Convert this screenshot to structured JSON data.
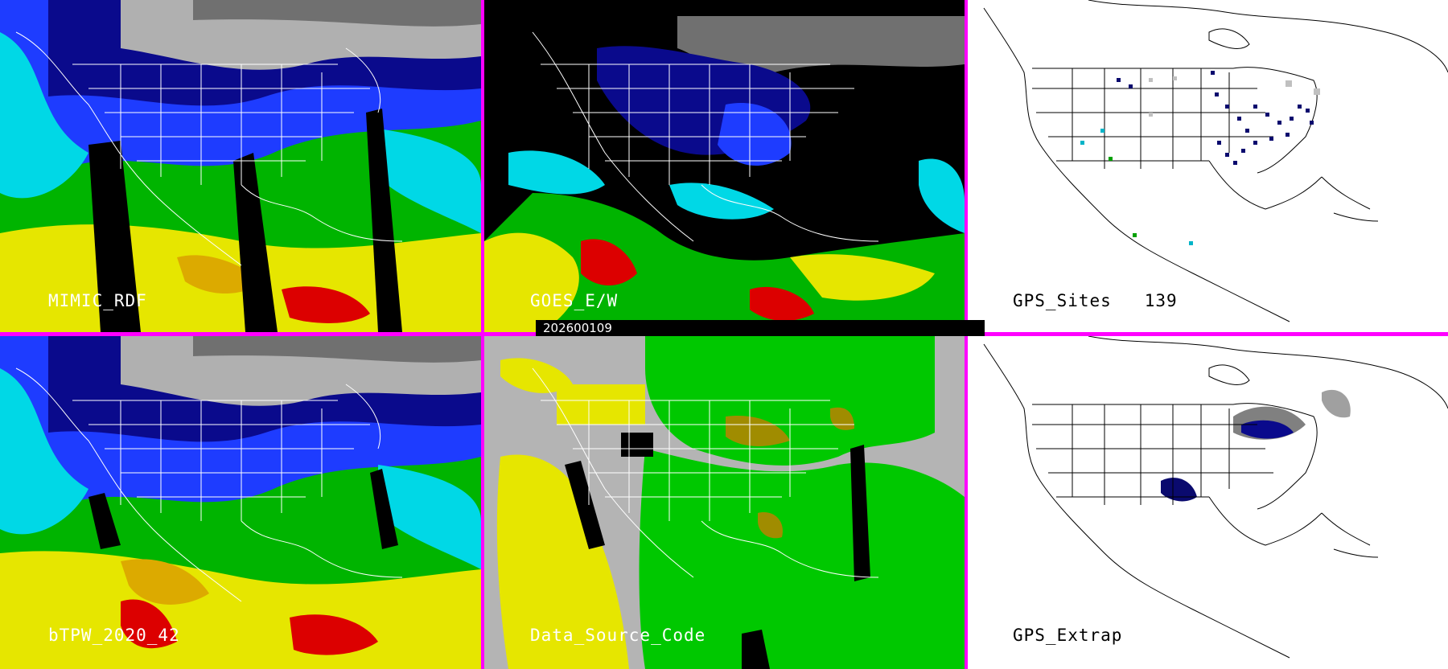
{
  "panels": {
    "mimic": {
      "label": "MIMIC_RDF"
    },
    "goes": {
      "label": "GOES_E/W"
    },
    "gps_sites": {
      "label": "GPS_Sites",
      "count": "139"
    },
    "btpw": {
      "label": "bTPW_2020_42"
    },
    "data_source": {
      "label": "Data_Source_Code"
    },
    "gps_extrap": {
      "label": "GPS_Extrap"
    }
  },
  "timestamp": "202600109",
  "colors": {
    "divider": "#ff00ff",
    "tpw_scale": [
      "#1a1a1a",
      "#707070",
      "#b0b0b0",
      "#0a0a8c",
      "#1e3cff",
      "#00d8e6",
      "#00b400",
      "#00ff00",
      "#e6e600",
      "#dcaa00",
      "#dc0000"
    ],
    "source_codes": [
      "#b4b4b4",
      "#e6e600",
      "#00c800",
      "#a08c00",
      "#000000"
    ],
    "gps_site_colors": [
      "#0a0a6e",
      "#00b4c8",
      "#00a000",
      "#c0c0c0"
    ]
  }
}
